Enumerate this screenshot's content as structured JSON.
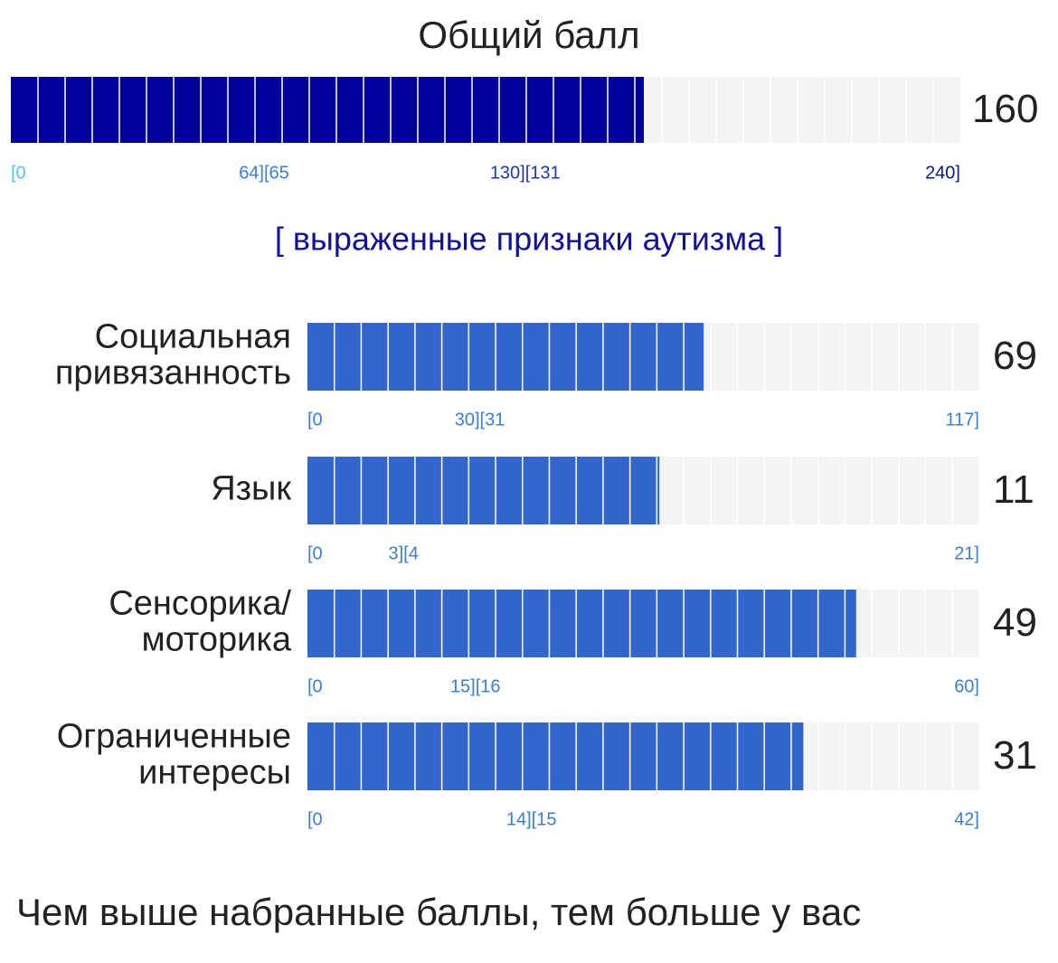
{
  "total": {
    "title": "Общий балл",
    "value": 160,
    "xlim": [
      0,
      240
    ],
    "color": "#00009a",
    "ticks": [
      {
        "value": 0,
        "label": "[0",
        "color": "#5bc0eb"
      },
      {
        "value": 64,
        "label": "64][65",
        "color": "#3a7fd5"
      },
      {
        "value": 130,
        "label": "130][131",
        "color": "#1a3aa8"
      },
      {
        "value": 240,
        "label": "240]",
        "color": "#0a1a80"
      }
    ]
  },
  "category": "[ выраженные признаки аутизма ]",
  "subscales": [
    {
      "label_lines": [
        "Социальная",
        "привязанность"
      ],
      "value": 69,
      "xlim": [
        0,
        117
      ],
      "ticks": [
        {
          "value": 0,
          "label": "[0"
        },
        {
          "value": 30,
          "label": "30][31"
        },
        {
          "value": 117,
          "label": "117]"
        }
      ]
    },
    {
      "label_lines": [
        "Язык"
      ],
      "value": 11,
      "xlim": [
        0,
        21
      ],
      "ticks": [
        {
          "value": 0,
          "label": "[0"
        },
        {
          "value": 3,
          "label": "3][4"
        },
        {
          "value": 21,
          "label": "21]"
        }
      ]
    },
    {
      "label_lines": [
        "Сенсорика/",
        "моторика"
      ],
      "value": 49,
      "xlim": [
        0,
        60
      ],
      "ticks": [
        {
          "value": 0,
          "label": "[0"
        },
        {
          "value": 15,
          "label": "15][16"
        },
        {
          "value": 60,
          "label": "60]"
        }
      ]
    },
    {
      "label_lines": [
        "Ограниченные",
        "интересы"
      ],
      "value": 31,
      "xlim": [
        0,
        42
      ],
      "ticks": [
        {
          "value": 0,
          "label": "[0"
        },
        {
          "value": 14,
          "label": "14][15"
        },
        {
          "value": 42,
          "label": "42]"
        }
      ]
    }
  ],
  "subscale_color": "#3366cc",
  "footer": "Чем выше набранные баллы, тем больше у вас"
}
